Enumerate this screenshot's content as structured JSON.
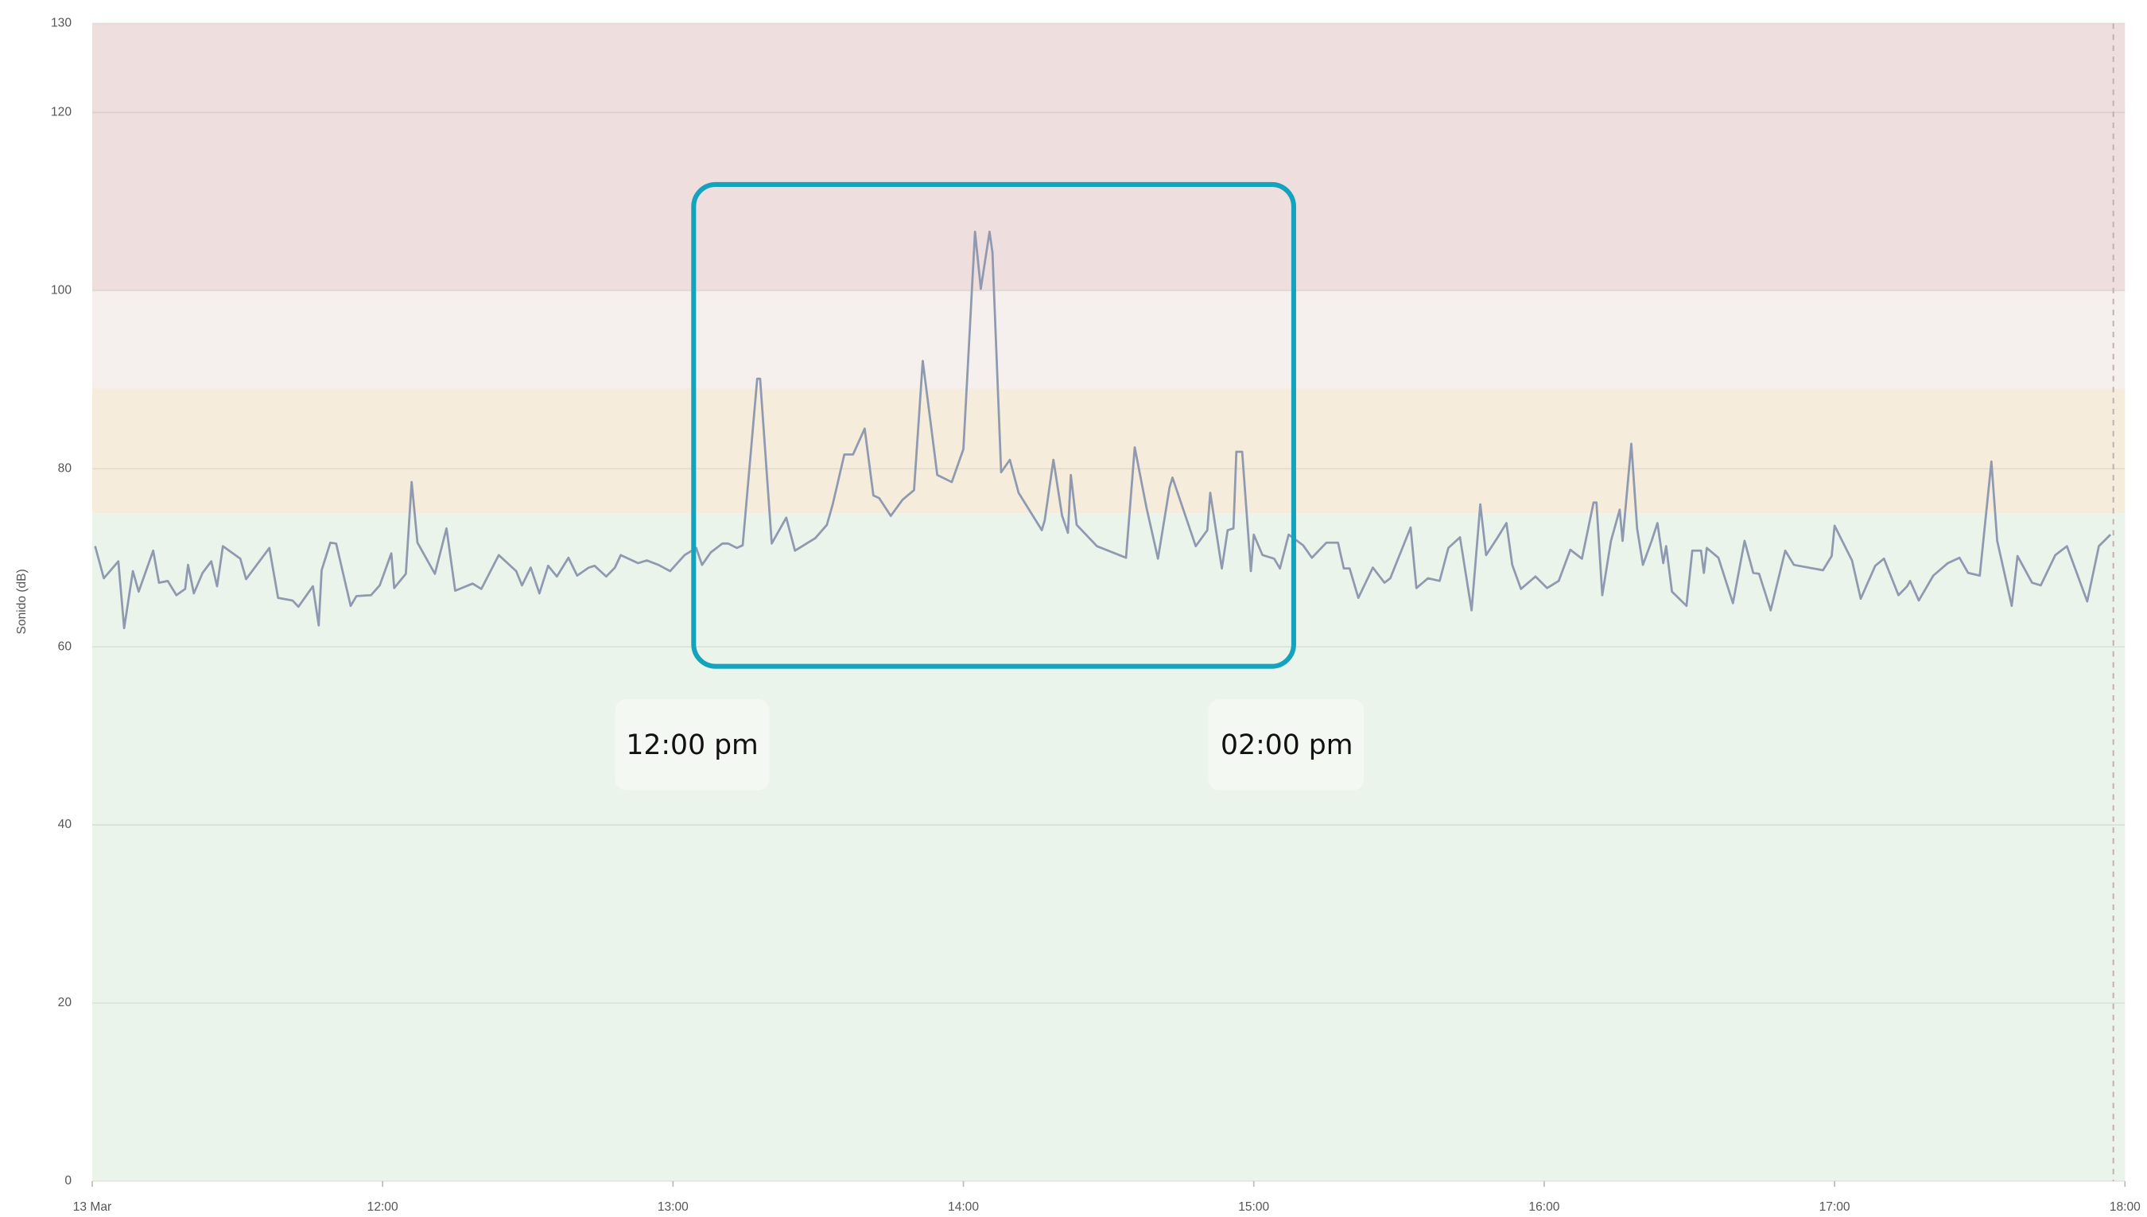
{
  "chart_data": {
    "type": "line",
    "y_label": "Sonido (dB)",
    "xlim": [
      11,
      18
    ],
    "xticks": [
      {
        "value": 11,
        "label": "13 Mar"
      },
      {
        "value": 12,
        "label": "12:00"
      },
      {
        "value": 13,
        "label": "13:00"
      },
      {
        "value": 14,
        "label": "14:00"
      },
      {
        "value": 15,
        "label": "15:00"
      },
      {
        "value": 16,
        "label": "16:00"
      },
      {
        "value": 17,
        "label": "17:00"
      },
      {
        "value": 18,
        "label": "18:00"
      }
    ],
    "ylim": [
      0,
      130
    ],
    "yticks": [
      0,
      20,
      40,
      60,
      80,
      100,
      120,
      130
    ],
    "grid": true,
    "bands": [
      {
        "from": 0,
        "to": 75,
        "color": "#eaf4ea"
      },
      {
        "from": 75,
        "to": 89,
        "color": "#f5ecdc"
      },
      {
        "from": 89,
        "to": 100,
        "color": "#f5f0ee"
      },
      {
        "from": 100,
        "to": 130,
        "color": "#eedede"
      }
    ],
    "vline": 17.96,
    "color": "#8f9ab0",
    "x": [
      11.01,
      11.04,
      11.09,
      11.11,
      11.14,
      11.16,
      11.21,
      11.23,
      11.26,
      11.29,
      11.32,
      11.33,
      11.35,
      11.38,
      11.41,
      11.43,
      11.45,
      11.51,
      11.53,
      11.61,
      11.64,
      11.69,
      11.71,
      11.76,
      11.78,
      11.79,
      11.82,
      11.84,
      11.89,
      11.91,
      11.96,
      11.99,
      12.03,
      12.04,
      12.08,
      12.1,
      12.12,
      12.18,
      12.22,
      12.25,
      12.31,
      12.34,
      12.4,
      12.46,
      12.48,
      12.51,
      12.54,
      12.57,
      12.6,
      12.64,
      12.67,
      12.71,
      12.73,
      12.77,
      12.8,
      12.82,
      12.88,
      12.91,
      12.95,
      12.99,
      13.04,
      13.08,
      13.1,
      13.13,
      13.17,
      13.19,
      13.22,
      13.24,
      13.29,
      13.3,
      13.34,
      13.39,
      13.42,
      13.49,
      13.53,
      13.55,
      13.59,
      13.62,
      13.66,
      13.69,
      13.71,
      13.75,
      13.79,
      13.83,
      13.86,
      13.88,
      13.91,
      13.96,
      14.0,
      14.04,
      14.06,
      14.09,
      14.1,
      14.13,
      14.16,
      14.19,
      14.27,
      14.28,
      14.31,
      14.34,
      14.36,
      14.37,
      14.39,
      14.46,
      14.56,
      14.59,
      14.63,
      14.67,
      14.71,
      14.72,
      14.8,
      14.84,
      14.85,
      14.89,
      14.91,
      14.93,
      14.94,
      14.96,
      14.99,
      15.0,
      15.03,
      15.07,
      15.09,
      15.12,
      15.17,
      15.2,
      15.25,
      15.29,
      15.31,
      15.33,
      15.36,
      15.41,
      15.45,
      15.47,
      15.54,
      15.56,
      15.6,
      15.64,
      15.67,
      15.71,
      15.75,
      15.78,
      15.8,
      15.84,
      15.87,
      15.89,
      15.92,
      15.97,
      16.01,
      16.05,
      16.09,
      16.13,
      16.17,
      16.18,
      16.2,
      16.23,
      16.26,
      16.27,
      16.3,
      16.32,
      16.34,
      16.37,
      16.39,
      16.41,
      16.42,
      16.44,
      16.49,
      16.51,
      16.54,
      16.55,
      16.56,
      16.6,
      16.65,
      16.69,
      16.72,
      16.74,
      16.78,
      16.83,
      16.86,
      16.96,
      16.99,
      17.0,
      17.06,
      17.09,
      17.14,
      17.17,
      17.22,
      17.25,
      17.26,
      17.29,
      17.34,
      17.39,
      17.43,
      17.46,
      17.5,
      17.54,
      17.56,
      17.61,
      17.63,
      17.68,
      17.71,
      17.76,
      17.8,
      17.87,
      17.91,
      17.95
    ],
    "values": [
      71.3,
      67.7,
      69.6,
      62.1,
      68.5,
      66.2,
      70.8,
      67.2,
      67.4,
      65.8,
      66.5,
      69.2,
      66,
      68.3,
      69.6,
      66.8,
      71.3,
      69.9,
      67.6,
      71.1,
      65.5,
      65.2,
      64.5,
      66.8,
      62.4,
      68.6,
      71.7,
      71.6,
      64.6,
      65.7,
      65.8,
      66.9,
      70.5,
      66.6,
      68.2,
      78.5,
      71.7,
      68.2,
      73.3,
      66.3,
      67.1,
      66.5,
      70.3,
      68.5,
      66.9,
      68.9,
      66,
      69.1,
      67.9,
      70,
      68,
      68.9,
      69.1,
      67.9,
      68.9,
      70.3,
      69.4,
      69.7,
      69.2,
      68.5,
      70.3,
      71.1,
      69.2,
      70.6,
      71.6,
      71.6,
      71.1,
      71.4,
      90.1,
      90.1,
      71.6,
      74.5,
      70.8,
      72.2,
      73.7,
      76,
      81.6,
      81.6,
      84.5,
      77,
      76.7,
      74.7,
      76.5,
      77.6,
      92.1,
      87,
      79.3,
      78.5,
      82.2,
      106.6,
      100.2,
      106.6,
      104.3,
      79.6,
      81,
      77.3,
      73.1,
      74.2,
      81,
      74.7,
      72.8,
      79.3,
      73.7,
      71.3,
      70,
      82.4,
      75.7,
      69.9,
      77.9,
      79,
      71.3,
      73.1,
      77.3,
      68.8,
      73.1,
      73.3,
      81.9,
      81.9,
      68.5,
      72.6,
      70.3,
      69.9,
      68.8,
      72.6,
      71.4,
      70,
      71.7,
      71.7,
      68.8,
      68.8,
      65.5,
      68.9,
      67.2,
      67.7,
      73.4,
      66.6,
      67.7,
      67.4,
      71.1,
      72.3,
      64.1,
      76,
      70.3,
      72.3,
      73.9,
      69.2,
      66.5,
      67.9,
      66.6,
      67.4,
      70.9,
      69.9,
      76.2,
      76.2,
      65.8,
      71.9,
      75.4,
      71.9,
      82.8,
      73.3,
      69.2,
      71.9,
      73.9,
      69.4,
      71.3,
      66.2,
      64.6,
      70.8,
      70.8,
      68.3,
      71.1,
      70,
      64.9,
      71.9,
      68.3,
      68.2,
      64.1,
      70.8,
      69.2,
      68.6,
      70.2,
      73.6,
      69.7,
      65.4,
      69.1,
      69.9,
      65.8,
      66.8,
      67.4,
      65.2,
      68,
      69.4,
      70,
      68.3,
      68,
      80.8,
      71.9,
      64.6,
      70.2,
      67.2,
      66.9,
      70.3,
      71.3,
      65.1,
      71.3,
      72.6
    ],
    "annotations": [
      "12:00 pm",
      "02:00 pm"
    ]
  }
}
